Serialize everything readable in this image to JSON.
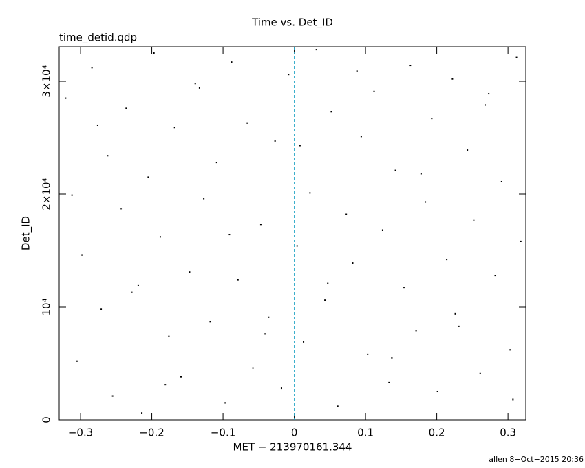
{
  "chart_data": {
    "type": "scatter",
    "title": "Time vs. Det_ID",
    "subtitle": "time_detid.qdp",
    "x_label": "MET − 213970161.344",
    "y_label": "Det_ID",
    "footer": "allen  8−Oct−2015 20:36",
    "xlim": [
      -0.33,
      0.325
    ],
    "ylim": [
      0,
      33050
    ],
    "xticks": [
      {
        "value": -0.3,
        "label": "−0.3"
      },
      {
        "value": -0.2,
        "label": "−0.2"
      },
      {
        "value": -0.1,
        "label": "−0.1"
      },
      0,
      0.1,
      0.2,
      0.3
    ],
    "yticks": [
      0,
      {
        "value": 10000,
        "label": "10⁴"
      },
      {
        "value": 20000,
        "label": "2×10⁴"
      },
      {
        "value": 30000,
        "label": "3×10⁴"
      }
    ],
    "vline": 0,
    "vline_color": "#2aa8c8",
    "color": "#000000",
    "series": [
      {
        "name": "Det_ID",
        "x": [
          -0.321,
          -0.305,
          -0.298,
          -0.284,
          -0.271,
          -0.262,
          -0.255,
          -0.243,
          -0.236,
          -0.228,
          -0.214,
          -0.205,
          -0.197,
          -0.188,
          -0.176,
          -0.168,
          -0.159,
          -0.147,
          -0.139,
          -0.127,
          -0.118,
          -0.109,
          -0.097,
          -0.088,
          -0.079,
          -0.066,
          -0.058,
          -0.047,
          -0.036,
          -0.027,
          -0.018,
          -0.008,
          0.004,
          0.013,
          0.022,
          0.031,
          0.043,
          0.052,
          0.061,
          0.073,
          0.082,
          0.094,
          0.103,
          0.112,
          0.124,
          0.133,
          0.142,
          0.154,
          0.163,
          0.171,
          0.184,
          0.193,
          0.201,
          0.214,
          0.222,
          0.231,
          0.243,
          0.252,
          0.261,
          0.273,
          0.282,
          0.291,
          0.303,
          0.312,
          0.318,
          -0.312,
          -0.276,
          -0.219,
          -0.181,
          -0.133,
          -0.091,
          -0.041,
          0.008,
          0.047,
          0.088,
          0.137,
          0.178,
          0.226,
          0.268,
          0.307
        ],
        "y": [
          28500,
          5200,
          14600,
          31200,
          9800,
          23400,
          2100,
          18700,
          27600,
          11300,
          600,
          21500,
          32500,
          16200,
          7400,
          25900,
          3800,
          13100,
          29800,
          19600,
          8700,
          22800,
          1500,
          31700,
          12400,
          26300,
          4600,
          17300,
          9100,
          24700,
          2800,
          30600,
          15400,
          6900,
          20100,
          32800,
          10600,
          27300,
          1200,
          18200,
          13900,
          25100,
          5800,
          29100,
          16800,
          3300,
          22100,
          11700,
          31400,
          7900,
          19300,
          26700,
          2500,
          14200,
          30200,
          8300,
          23900,
          17700,
          4100,
          28900,
          12800,
          21100,
          6200,
          32100,
          15800,
          19900,
          26100,
          11900,
          3100,
          29400,
          16400,
          7600,
          24300,
          12100,
          30900,
          5500,
          21800,
          9400,
          27900,
          1800
        ]
      }
    ]
  }
}
